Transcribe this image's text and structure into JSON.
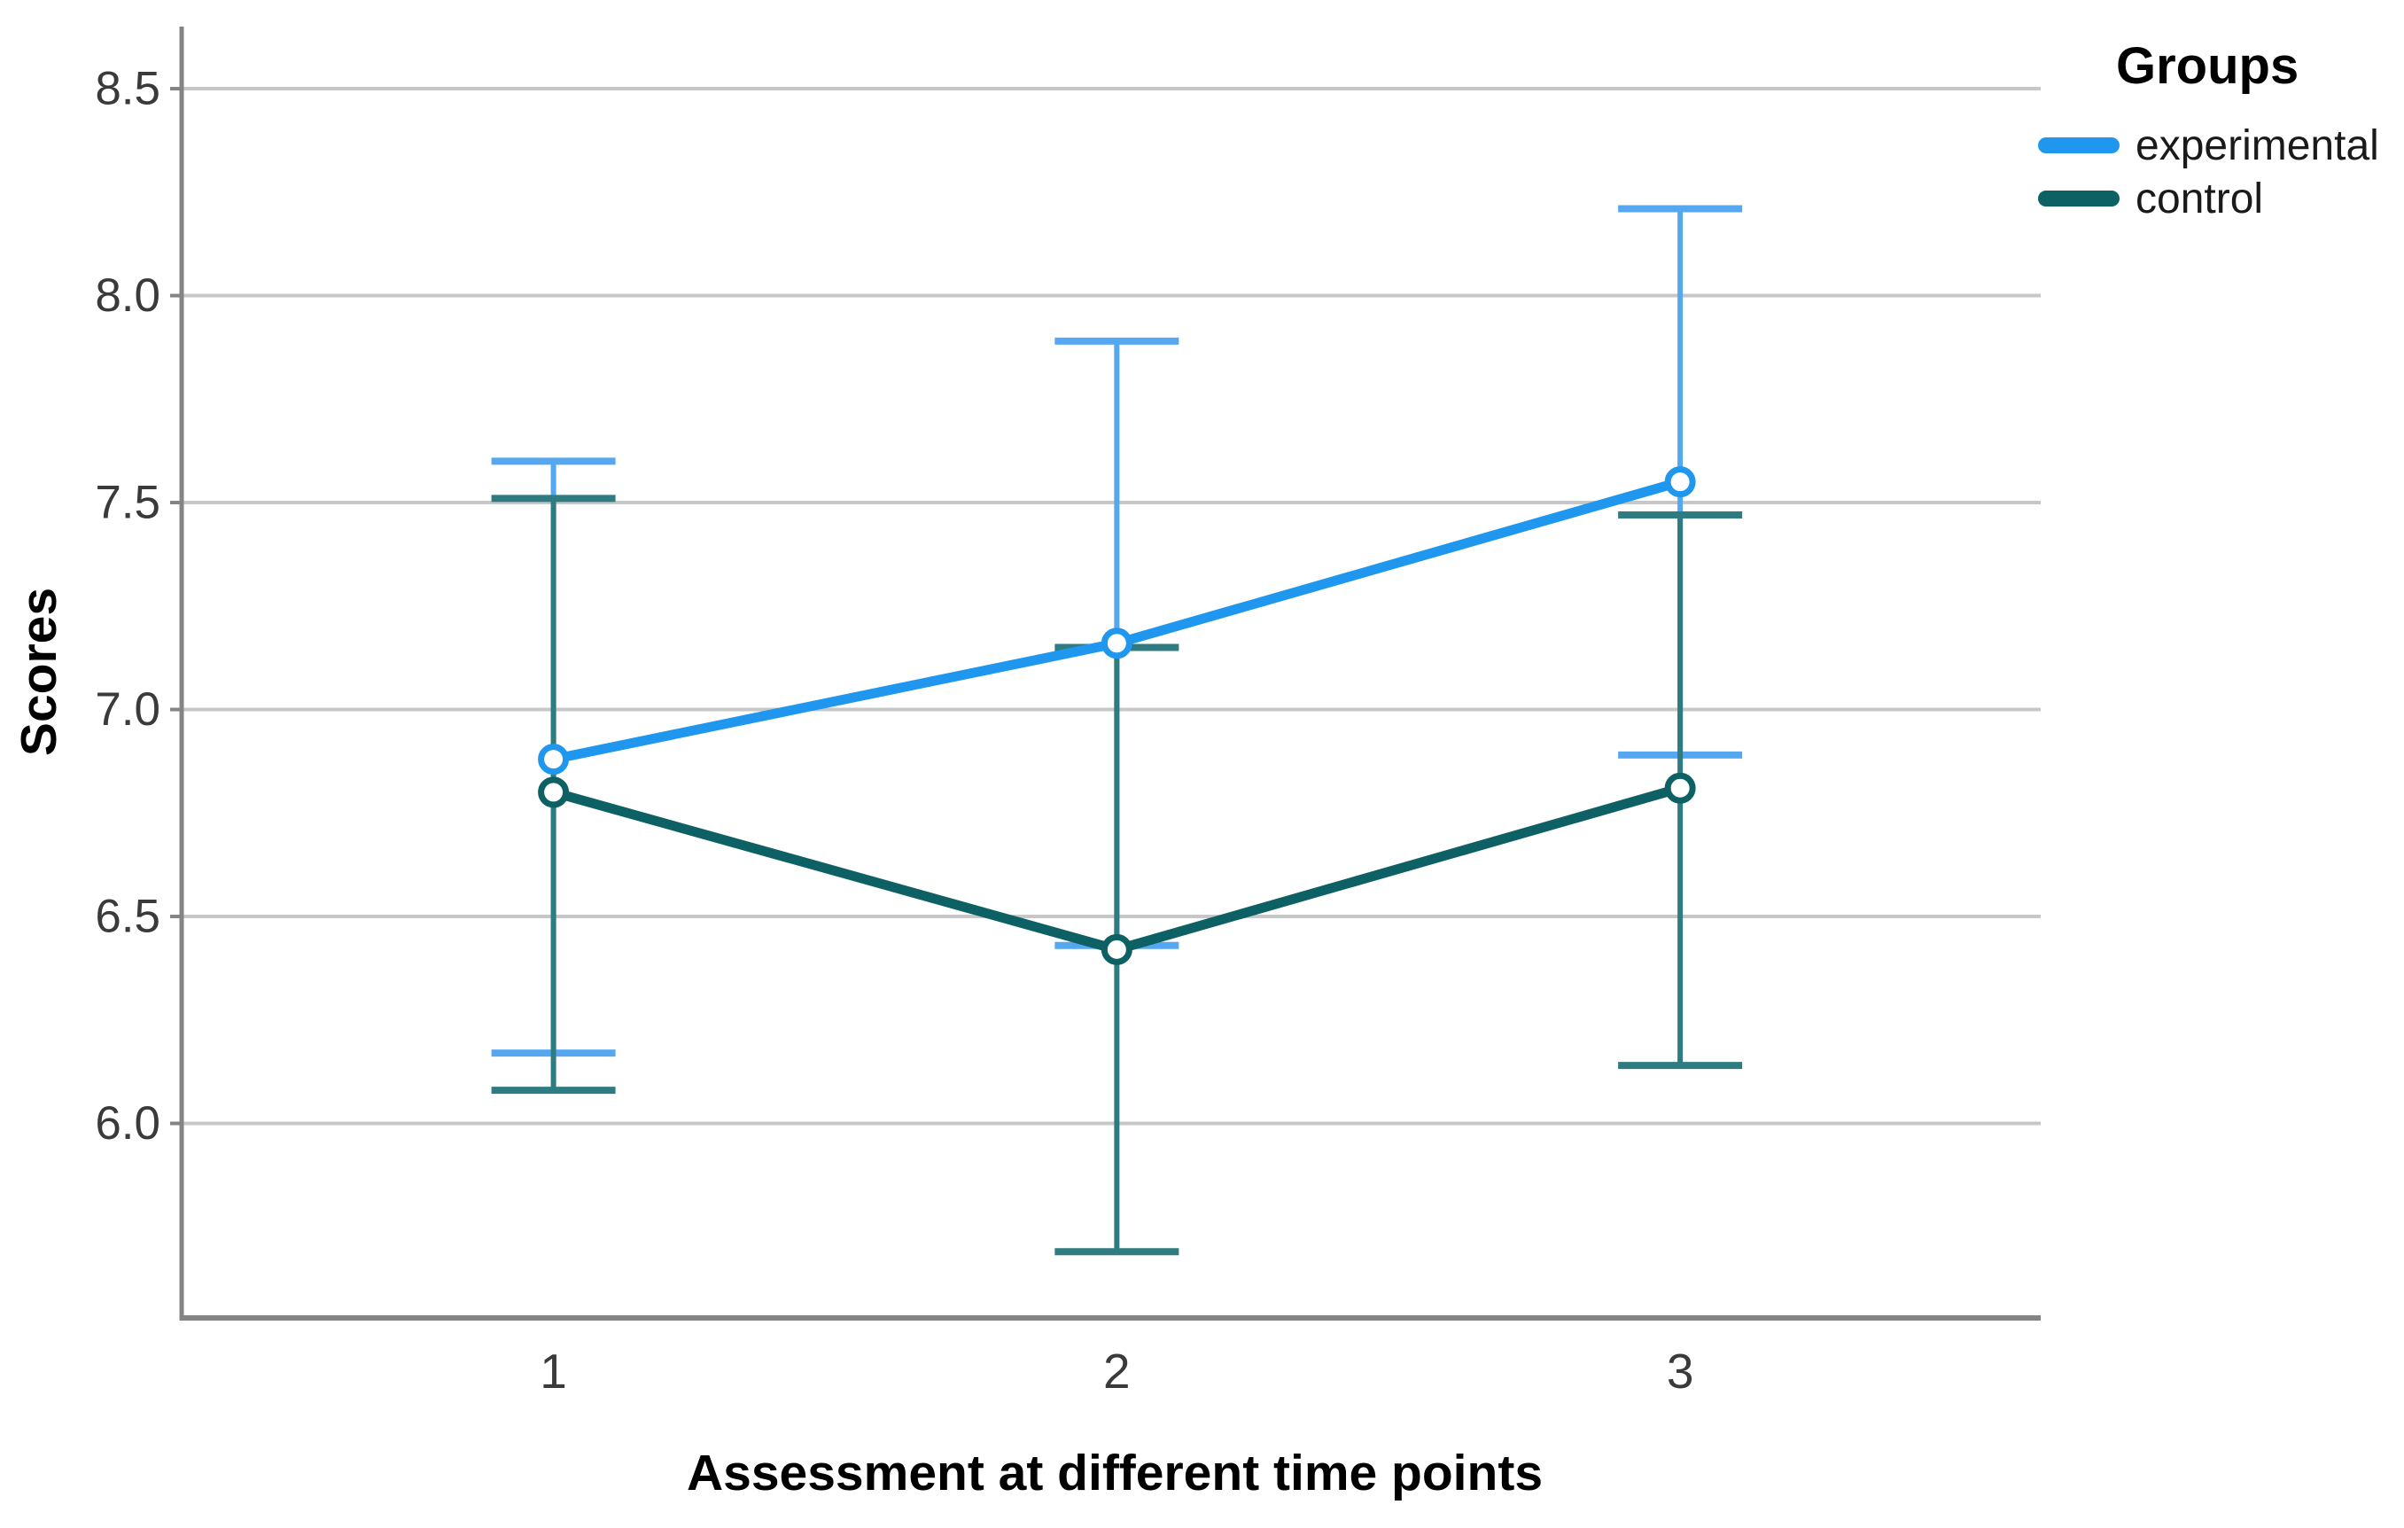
{
  "figure": {
    "background": "#ffffff"
  },
  "chart_data": {
    "type": "line",
    "title": "",
    "xlabel": "Assessment at different time points",
    "ylabel": "Scores",
    "x": [
      1,
      2,
      3
    ],
    "xticklabels": [
      "1",
      "2",
      "3"
    ],
    "xlim": [
      0.34,
      3.64
    ],
    "ylim": [
      5.53,
      8.65
    ],
    "yticks": [
      6.0,
      6.5,
      7.0,
      7.5,
      8.0,
      8.5
    ],
    "yticklabels": [
      "6.0",
      "6.5",
      "7.0",
      "7.5",
      "8.0",
      "8.5"
    ],
    "grid": "horizontal",
    "error_bars": "95% CI",
    "legend_title": "Groups",
    "legend_position": "top-right-outside",
    "series": [
      {
        "name": "experimental",
        "means": [
          6.88,
          7.16,
          7.55
        ],
        "ci_lower": [
          6.17,
          6.43,
          6.89
        ],
        "ci_upper": [
          7.6,
          7.89,
          8.21
        ],
        "line_color": "#1f97ee",
        "errorbar_color": "#55a7ef",
        "marker": "open-circle"
      },
      {
        "name": "control",
        "means": [
          6.8,
          6.42,
          6.81
        ],
        "ci_lower": [
          6.08,
          5.69,
          6.14
        ],
        "ci_upper": [
          7.51,
          7.15,
          7.47
        ],
        "line_color": "#0d6063",
        "errorbar_color": "#2e7c82",
        "marker": "open-circle"
      }
    ],
    "colors": {
      "gridline": "#c7c7c7",
      "axis": "#848484",
      "tick_label": "#3a3a3a",
      "marker_fill": "#ffffff"
    }
  }
}
